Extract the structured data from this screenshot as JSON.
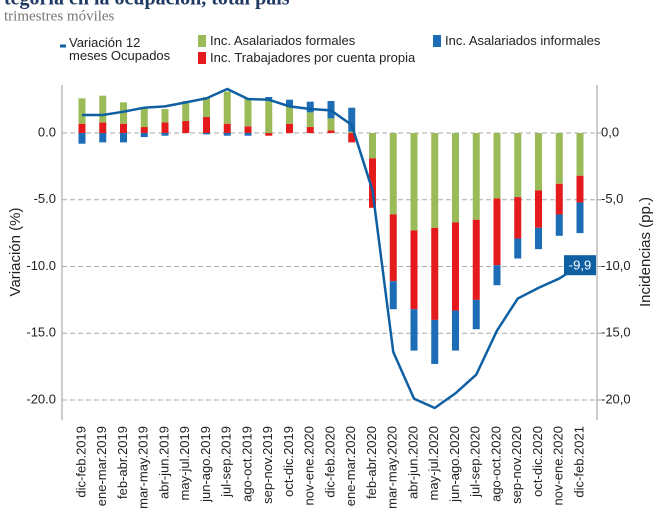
{
  "chart_data": {
    "type": "bar",
    "title": "tegoría en la ocupación, total país",
    "subtitle": "trimestres móviles",
    "y_label": "Variación (%)",
    "y2_label": "Incidencias (pp.)",
    "categories": [
      "dic-feb.2019",
      "ene-mar.2019",
      "feb-abr.2019",
      "mar-may.2019",
      "abr-jun.2019",
      "may-jul.2019",
      "jun-ago.2019",
      "jul-sep.2019",
      "ago-oct.2019",
      "sep-nov.2019",
      "oct-dic.2019",
      "nov-ene.2020",
      "dic-feb.2020",
      "ene-mar.2020",
      "feb-abr.2020",
      "mar-may.2020",
      "abr-jun.2020",
      "may-jul.2020",
      "jun-ago.2020",
      "jul-sep.2020",
      "ago-oct.2020",
      "sep-nov.2020",
      "oct-dic.2020",
      "nov-ene.2020",
      "dic-feb.2021"
    ],
    "series": [
      {
        "name": "Variación 12 meses Ocupados",
        "type": "line",
        "color": "#0f5fa3",
        "values": [
          1.35,
          1.35,
          1.6,
          1.9,
          2.0,
          2.3,
          2.6,
          3.3,
          2.55,
          2.5,
          2.0,
          1.8,
          1.7,
          0.6,
          -4.3,
          -16.4,
          -19.9,
          -20.6,
          -19.5,
          -18.1,
          -14.8,
          -12.4,
          -11.6,
          -10.9,
          -9.9
        ],
        "value_labels": [
          null,
          null,
          null,
          null,
          null,
          null,
          null,
          null,
          null,
          null,
          null,
          null,
          null,
          null,
          null,
          null,
          null,
          null,
          null,
          null,
          null,
          null,
          null,
          null,
          "-9,9"
        ]
      },
      {
        "name": "Inc. Asalariados formales",
        "type": "bar",
        "color": "#9bbb59",
        "values": [
          1.9,
          2.0,
          1.6,
          1.5,
          1.0,
          1.5,
          1.5,
          2.4,
          2.1,
          2.4,
          1.3,
          1.1,
          0.9,
          0.1,
          -1.9,
          -6.1,
          -7.3,
          -7.1,
          -6.7,
          -6.5,
          -4.9,
          -4.8,
          -4.3,
          -3.8,
          -3.2
        ]
      },
      {
        "name": "Inc. Trabajadores por cuenta propia",
        "type": "bar",
        "color": "#e41a1c",
        "values": [
          0.7,
          0.8,
          0.7,
          0.45,
          0.8,
          0.9,
          1.2,
          0.7,
          0.5,
          -0.2,
          0.7,
          0.45,
          0.2,
          -0.7,
          -3.7,
          -5.0,
          -5.9,
          -6.9,
          -6.6,
          -6.0,
          -5.0,
          -3.1,
          -2.8,
          -2.3,
          -2.0
        ]
      },
      {
        "name": "Inc. Asalariados informales",
        "type": "bar",
        "color": "#1c6db5",
        "values": [
          -0.8,
          -0.7,
          -0.7,
          -0.3,
          -0.2,
          0,
          -0.1,
          -0.2,
          -0.2,
          0.3,
          0.5,
          0.8,
          1.3,
          1.8,
          0,
          -2.1,
          -3.1,
          -3.3,
          -3.0,
          -2.2,
          -1.5,
          -1.5,
          -1.6,
          -1.6,
          -2.3
        ]
      }
    ],
    "ylim": [
      -21.5,
      3.6
    ],
    "yticks": [
      {
        "value": 0,
        "label": "0.0"
      },
      {
        "value": -5,
        "label": "-5.0"
      },
      {
        "value": -10,
        "label": "-10.0"
      },
      {
        "value": -15,
        "label": "-15.0"
      },
      {
        "value": -20,
        "label": "-20.0"
      }
    ],
    "y2lim": [
      -21.5,
      3.6
    ],
    "y2ticks": [
      {
        "value": 0,
        "label": "0,0"
      },
      {
        "value": -5,
        "label": "-5,0"
      },
      {
        "value": -10,
        "label": "-10,0"
      },
      {
        "value": -15,
        "label": "-15,0"
      },
      {
        "value": -20,
        "label": "-20,0"
      }
    ],
    "grid": true
  }
}
